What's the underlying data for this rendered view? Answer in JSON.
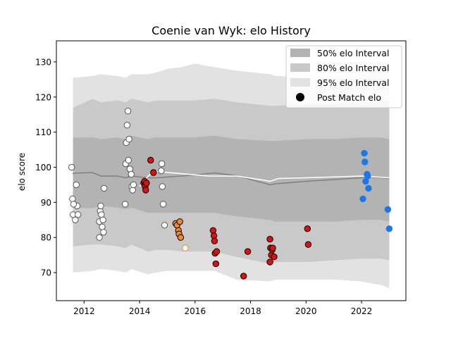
{
  "chart_data": {
    "type": "scatter",
    "title": "Coenie van Wyk: elo History",
    "ylabel": "elo score",
    "xlabel": "",
    "xlim": [
      2011.0,
      2023.6
    ],
    "ylim": [
      62,
      136
    ],
    "xticks": [
      2012,
      2014,
      2016,
      2018,
      2020,
      2022
    ],
    "yticks": [
      70,
      80,
      90,
      100,
      110,
      120,
      130
    ],
    "grid": false,
    "legend_position": "top-right",
    "legend": [
      {
        "label": "50% elo Interval",
        "kind": "band",
        "color": "#b3b3b3"
      },
      {
        "label": "80% elo Interval",
        "kind": "band",
        "color": "#c9c9c9"
      },
      {
        "label": "95% elo Interval",
        "kind": "band",
        "color": "#e2e2e2"
      },
      {
        "label": "Post Match elo",
        "kind": "marker",
        "color": "#000000"
      }
    ],
    "bands_x": [
      2011.6,
      2011.62,
      2012.3,
      2012.6,
      2013.2,
      2013.5,
      2013.7,
      2014.3,
      2014.6,
      2015.0,
      2015.5,
      2016.0,
      2016.7,
      2017.5,
      2018.7,
      2018.9,
      2020.0,
      2021.0,
      2022.0,
      2022.3,
      2022.7,
      2023.0
    ],
    "median": [
      98.0,
      98.3,
      98.5,
      97.5,
      97.5,
      97.0,
      97.5,
      97.0,
      97.0,
      97.2,
      97.5,
      97.8,
      98.4,
      97.6,
      95.0,
      95.3,
      96.0,
      96.5,
      97.0,
      97.2,
      97.0,
      96.8
    ],
    "band50_low": [
      88.0,
      88.5,
      88.3,
      89.0,
      88.5,
      88.0,
      88.5,
      87.0,
      87.0,
      87.0,
      87.0,
      87.0,
      87.0,
      86.0,
      85.0,
      84.5,
      84.5,
      84.5,
      85.0,
      85.0,
      85.0,
      84.5
    ],
    "band50_high": [
      108.0,
      108.5,
      108.5,
      108.0,
      108.5,
      108.0,
      109.0,
      108.0,
      108.5,
      108.5,
      108.5,
      108.5,
      109.0,
      108.0,
      107.5,
      107.5,
      108.0,
      108.0,
      108.5,
      108.5,
      108.5,
      108.0
    ],
    "band80_low": [
      77.5,
      77.5,
      78.0,
      78.0,
      77.5,
      77.0,
      78.0,
      76.0,
      76.5,
      76.5,
      76.0,
      76.0,
      76.0,
      74.5,
      72.5,
      73.0,
      73.0,
      73.5,
      74.0,
      74.0,
      74.0,
      73.5
    ],
    "band80_high": [
      117.0,
      117.0,
      119.5,
      118.5,
      119.0,
      118.5,
      119.5,
      118.5,
      119.0,
      119.0,
      119.0,
      119.0,
      119.5,
      118.5,
      117.5,
      117.5,
      118.0,
      118.0,
      118.5,
      118.5,
      119.0,
      119.0
    ],
    "band95_low": [
      70.0,
      70.0,
      70.5,
      71.0,
      70.5,
      70.0,
      71.0,
      69.5,
      70.0,
      70.5,
      70.5,
      70.5,
      70.5,
      68.0,
      67.5,
      68.0,
      68.0,
      68.0,
      67.5,
      67.0,
      66.5,
      65.5
    ],
    "band95_high": [
      125.5,
      125.5,
      126.0,
      126.5,
      126.0,
      125.5,
      126.5,
      126.5,
      127.0,
      128.0,
      128.5,
      129.5,
      128.5,
      127.5,
      126.5,
      126.0,
      125.5,
      126.0,
      126.5,
      126.5,
      127.0,
      127.0
    ],
    "rating_line": {
      "color": "#ffffff",
      "x": [
        2014.0,
        2014.2,
        2014.4,
        2014.6,
        2016.5,
        2017.5,
        2018.5,
        2018.7,
        2019.0,
        2020.0,
        2022.0,
        2023.0
      ],
      "y": [
        94.5,
        96.5,
        98.2,
        98.8,
        97.5,
        97.5,
        96.3,
        96.0,
        96.8,
        97.0,
        97.5,
        97.0
      ]
    },
    "series": [
      {
        "marker": "hollow",
        "face": "#ffffff",
        "edge": "#555555",
        "x": [
          2011.55,
          2011.58,
          2011.6,
          2011.68,
          2011.72,
          2011.75,
          2011.78,
          2011.62,
          2012.55,
          2012.58,
          2012.6,
          2012.62,
          2012.65,
          2012.68,
          2012.7,
          2012.55,
          2012.72,
          2013.5,
          2013.52,
          2013.55,
          2013.58,
          2013.6,
          2013.62,
          2013.65,
          2013.7,
          2013.72,
          2013.75,
          2013.78,
          2014.8,
          2014.78,
          2014.82,
          2014.85,
          2014.9,
          2013.48
        ],
        "y": [
          100.0,
          91.0,
          86.5,
          85.0,
          95.0,
          89.0,
          86.5,
          89.5,
          84.5,
          87.5,
          89.0,
          86.5,
          83.0,
          85.0,
          81.5,
          80.0,
          94.0,
          101.0,
          107.0,
          112.0,
          116.0,
          102.0,
          108.0,
          99.5,
          98.0,
          94.5,
          93.5,
          95.0,
          101.0,
          99.0,
          94.5,
          89.5,
          83.5,
          89.5
        ]
      },
      {
        "marker": "filled",
        "face": "#dd1111",
        "edge": "#000000",
        "x": [
          2014.15,
          2014.18,
          2014.2,
          2014.22,
          2014.25,
          2014.4,
          2014.5,
          2016.65,
          2016.68,
          2016.7,
          2016.72,
          2016.75,
          2016.78,
          2017.75,
          2017.9,
          2018.7,
          2018.72,
          2018.75,
          2018.78,
          2018.8,
          2018.85,
          2018.7,
          2020.05,
          2020.08
        ],
        "y": [
          95.5,
          96.0,
          94.5,
          93.5,
          95.5,
          102.0,
          98.5,
          82.0,
          80.5,
          79.0,
          75.5,
          72.5,
          76.0,
          69.0,
          76.0,
          79.5,
          77.0,
          75.0,
          76.5,
          77.0,
          74.5,
          73.0,
          82.5,
          78.0
        ]
      },
      {
        "marker": "filled",
        "face": "#f08a30",
        "edge": "#000000",
        "x": [
          2015.3,
          2015.35,
          2015.4,
          2015.42,
          2015.45,
          2015.48
        ],
        "y": [
          84.0,
          83.5,
          82.0,
          81.0,
          84.5,
          80.0
        ]
      },
      {
        "marker": "hollow",
        "face": "#ffffff",
        "edge": "#f08a30",
        "x": [
          2015.65
        ],
        "y": [
          77.0
        ]
      },
      {
        "marker": "filled",
        "face": "#1f77e6",
        "edge": "#1f77e6",
        "x": [
          2022.1,
          2022.12,
          2022.15,
          2022.2,
          2022.25,
          2022.22,
          2022.05,
          2022.95,
          2023.0
        ],
        "y": [
          104.0,
          101.5,
          96.0,
          98.0,
          94.0,
          97.5,
          91.0,
          88.0,
          82.5
        ]
      }
    ]
  }
}
